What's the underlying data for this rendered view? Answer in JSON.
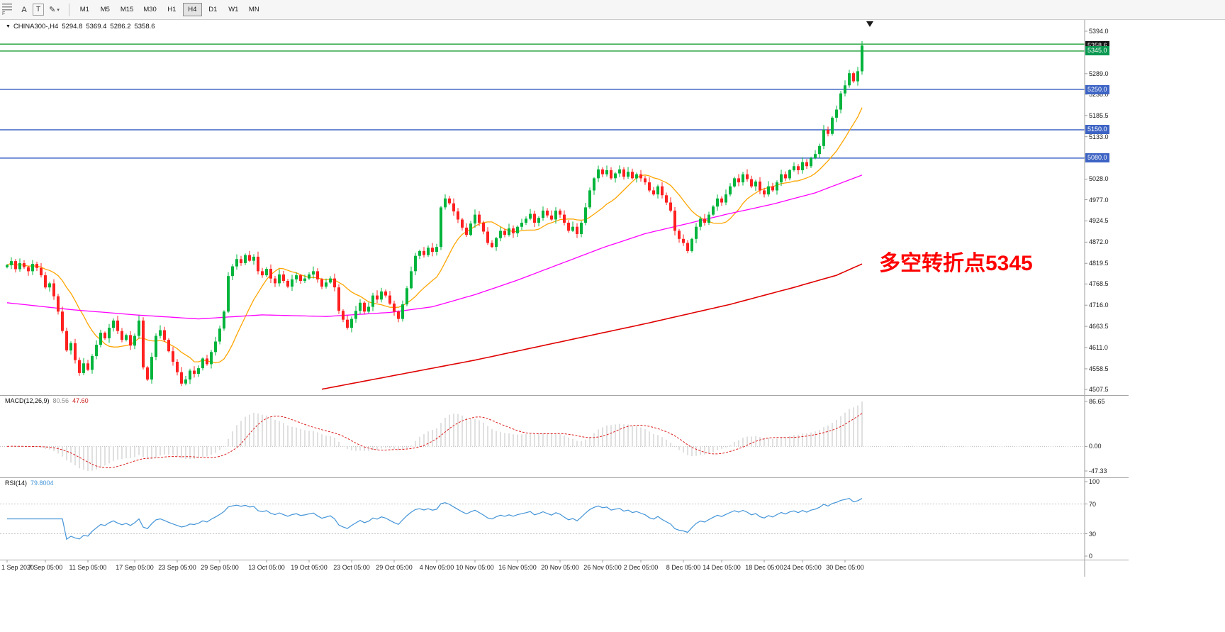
{
  "toolbar": {
    "side_label": "F",
    "tools": [
      {
        "label": "A",
        "name": "cursor-tool"
      },
      {
        "label": "T",
        "name": "text-tool"
      },
      {
        "label": "✎",
        "name": "draw-tool"
      }
    ],
    "timeframes": [
      "M1",
      "M5",
      "M15",
      "M30",
      "H1",
      "H4",
      "D1",
      "W1",
      "MN"
    ],
    "selected_timeframe": "H4"
  },
  "header": {
    "symbol": "CHINA300-,H4",
    "open": "5294.8",
    "high": "5369.4",
    "low": "5286.2",
    "close": "5358.6"
  },
  "annotation": {
    "text": "多空转折点5345",
    "color": "#FF0000"
  },
  "price_axis": {
    "labels": [
      "5394.0",
      "5341.5",
      "5289.0",
      "5238.0",
      "5185.5",
      "5133.0",
      "5080.5",
      "5028.0",
      "4977.0",
      "4924.5",
      "4872.0",
      "4819.5",
      "4768.5",
      "4716.0",
      "4663.5",
      "4611.0",
      "4558.5",
      "4507.5"
    ]
  },
  "price_tags": {
    "current": {
      "text": "5358.6",
      "price": 5358.6,
      "bg": "#141414"
    },
    "levels": [
      {
        "text": "5345.0",
        "price": 5345.0,
        "bg": "#089850"
      },
      {
        "text": "5250.0",
        "price": 5250.0,
        "bg": "#3D64C4"
      },
      {
        "text": "5150.0",
        "price": 5150.0,
        "bg": "#3D64C4"
      },
      {
        "text": "5080.0",
        "price": 5080.0,
        "bg": "#3D64C4"
      }
    ]
  },
  "macd_panel": {
    "name": "MACD(12,26,9)",
    "main_value": "80.56",
    "signal_value": "47.60",
    "axis_labels": [
      "86.65",
      "0.00",
      "-47.33"
    ],
    "axis_values": [
      86.65,
      0,
      -47.33
    ],
    "range": [
      -47.33,
      86.65
    ],
    "histogram_color": "#c2c2c2",
    "signal_color": "#dd2020"
  },
  "rsi_panel": {
    "name": "RSI(14)",
    "value": "79.8004",
    "axis_labels": [
      "100",
      "70",
      "30",
      "0"
    ],
    "axis_values": [
      100,
      70,
      30,
      0
    ],
    "levels": [
      70,
      30
    ],
    "line_color": "#4394d8"
  },
  "chart_data": {
    "type": "candlestick",
    "symbol": "CHINA300-",
    "timeframe": "H4",
    "title": "CHINA300-,H4",
    "y_range": [
      4507.5,
      5394.0
    ],
    "x_labels": [
      "1 Sep 2020",
      "7 Sep 05:00",
      "11 Sep 05:00",
      "17 Sep 05:00",
      "23 Sep 05:00",
      "29 Sep 05:00",
      "13 Oct 05:00",
      "19 Oct 05:00",
      "23 Oct 05:00",
      "29 Oct 05:00",
      "4 Nov 05:00",
      "10 Nov 05:00",
      "16 Nov 05:00",
      "20 Nov 05:00",
      "26 Nov 05:00",
      "2 Dec 05:00",
      "8 Dec 05:00",
      "14 Dec 05:00",
      "18 Dec 05:00",
      "24 Dec 05:00",
      "30 Dec 05:00"
    ],
    "x_label_indices": [
      0,
      9,
      19,
      30,
      40,
      50,
      61,
      71,
      81,
      91,
      101,
      110,
      120,
      130,
      140,
      149,
      159,
      168,
      178,
      187,
      197
    ],
    "first_open": 4810,
    "closes": [
      4815,
      4825,
      4805,
      4820,
      4810,
      4800,
      4818,
      4808,
      4790,
      4760,
      4770,
      4738,
      4700,
      4652,
      4604,
      4622,
      4580,
      4548,
      4572,
      4556,
      4590,
      4618,
      4648,
      4634,
      4660,
      4678,
      4652,
      4630,
      4642,
      4616,
      4640,
      4678,
      4562,
      4532,
      4588,
      4640,
      4654,
      4630,
      4602,
      4576,
      4550,
      4522,
      4532,
      4554,
      4546,
      4560,
      4584,
      4570,
      4600,
      4626,
      4658,
      4700,
      4788,
      4812,
      4830,
      4820,
      4840,
      4826,
      4836,
      4800,
      4790,
      4806,
      4782,
      4770,
      4792,
      4776,
      4762,
      4780,
      4790,
      4776,
      4782,
      4792,
      4800,
      4780,
      4762,
      4772,
      4782,
      4760,
      4702,
      4680,
      4660,
      4682,
      4702,
      4722,
      4700,
      4712,
      4740,
      4730,
      4750,
      4740,
      4720,
      4700,
      4682,
      4718,
      4758,
      4800,
      4838,
      4850,
      4840,
      4858,
      4848,
      4860,
      4958,
      4980,
      4968,
      4948,
      4928,
      4908,
      4890,
      4918,
      4940,
      4920,
      4898,
      4870,
      4860,
      4882,
      4900,
      4890,
      4906,
      4894,
      4910,
      4920,
      4930,
      4942,
      4920,
      4932,
      4950,
      4938,
      4928,
      4950,
      4940,
      4920,
      4900,
      4910,
      4892,
      4920,
      4958,
      5000,
      5030,
      5052,
      5040,
      5050,
      5030,
      5042,
      5052,
      5034,
      5046,
      5030,
      5040,
      5030,
      5020,
      5000,
      4990,
      5010,
      4988,
      4970,
      4950,
      4900,
      4880,
      4870,
      4850,
      4880,
      4910,
      4930,
      4920,
      4940,
      4960,
      4980,
      4970,
      4990,
      5010,
      5030,
      5020,
      5040,
      5028,
      5010,
      5022,
      5000,
      4990,
      5010,
      5000,
      5020,
      5040,
      5030,
      5050,
      5060,
      5050,
      5070,
      5060,
      5080,
      5090,
      5110,
      5150,
      5140,
      5180,
      5200,
      5240,
      5260,
      5290,
      5270,
      5295,
      5358.6
    ],
    "last_candle": {
      "open": 5294.8,
      "high": 5369.4,
      "low": 5286.2,
      "close": 5358.6
    },
    "up_color": "#00B43C",
    "down_color": "#FF2020",
    "horizontal_lines": [
      {
        "price": 5362.0,
        "color": "#1E9E35"
      },
      {
        "price": 5345.0,
        "color": "#1E9E35"
      },
      {
        "price": 5250.0,
        "color": "#3D64C4"
      },
      {
        "price": 5150.0,
        "color": "#3D64C4"
      },
      {
        "price": 5080.0,
        "color": "#3D64C4"
      }
    ],
    "moving_averages": {
      "orange": {
        "period": 13,
        "color": "#FFA500"
      },
      "magenta": {
        "color": "#FF00FF",
        "points": [
          [
            0,
            4722
          ],
          [
            15,
            4705
          ],
          [
            30,
            4692
          ],
          [
            45,
            4682
          ],
          [
            60,
            4692
          ],
          [
            75,
            4688
          ],
          [
            90,
            4698
          ],
          [
            100,
            4712
          ],
          [
            110,
            4742
          ],
          [
            120,
            4778
          ],
          [
            130,
            4818
          ],
          [
            140,
            4858
          ],
          [
            150,
            4893
          ],
          [
            160,
            4918
          ],
          [
            170,
            4943
          ],
          [
            180,
            4966
          ],
          [
            190,
            4994
          ],
          [
            201,
            5038
          ]
        ]
      },
      "red": {
        "color": "#E00000",
        "points": [
          [
            74,
            4508
          ],
          [
            90,
            4540
          ],
          [
            110,
            4580
          ],
          [
            130,
            4625
          ],
          [
            150,
            4670
          ],
          [
            170,
            4718
          ],
          [
            185,
            4760
          ],
          [
            195,
            4790
          ],
          [
            201,
            4818
          ]
        ]
      }
    },
    "indicators": {
      "macd": {
        "params": [
          12,
          26,
          9
        ],
        "last_main": 80.56,
        "last_signal": 47.6,
        "axis": [
          86.65,
          0,
          -47.33
        ]
      },
      "rsi": {
        "period": 14,
        "last": 79.8004,
        "levels": [
          30,
          70
        ]
      }
    }
  }
}
